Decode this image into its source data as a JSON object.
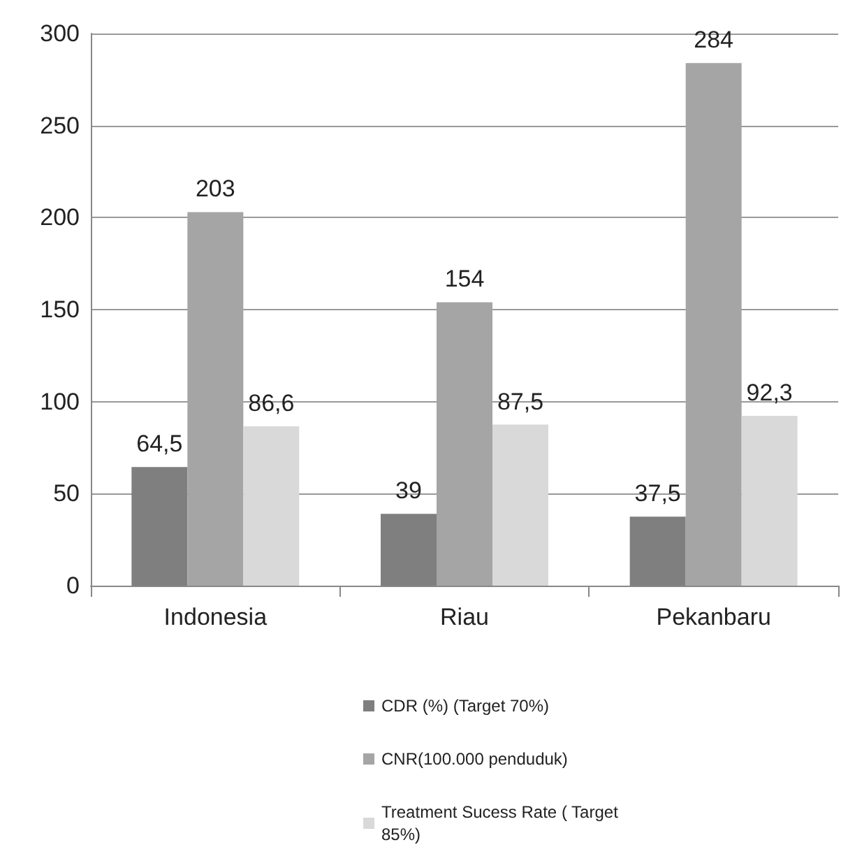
{
  "chart_data": {
    "type": "bar",
    "categories": [
      "Indonesia",
      "Riau",
      "Pekanbaru"
    ],
    "series": [
      {
        "name": "CDR (%) (Target 70%)",
        "color": "#7f7f7f",
        "values": [
          64.5,
          39,
          37.5
        ],
        "value_labels": [
          "64,5",
          "39",
          "37,5"
        ]
      },
      {
        "name": "CNR(100.000 penduduk)",
        "color": "#a5a5a5",
        "values": [
          203,
          154,
          284
        ],
        "value_labels": [
          "203",
          "154",
          "284"
        ]
      },
      {
        "name": "Treatment Sucess Rate ( Target 85%)",
        "color": "#d9d9d9",
        "values": [
          86.6,
          87.5,
          92.3
        ],
        "value_labels": [
          "86,6",
          "87,5",
          "92,3"
        ]
      }
    ],
    "ylim": [
      0,
      300
    ],
    "yticks": [
      0,
      50,
      100,
      150,
      200,
      250,
      300
    ],
    "grid": "y",
    "legend": "bottom"
  }
}
